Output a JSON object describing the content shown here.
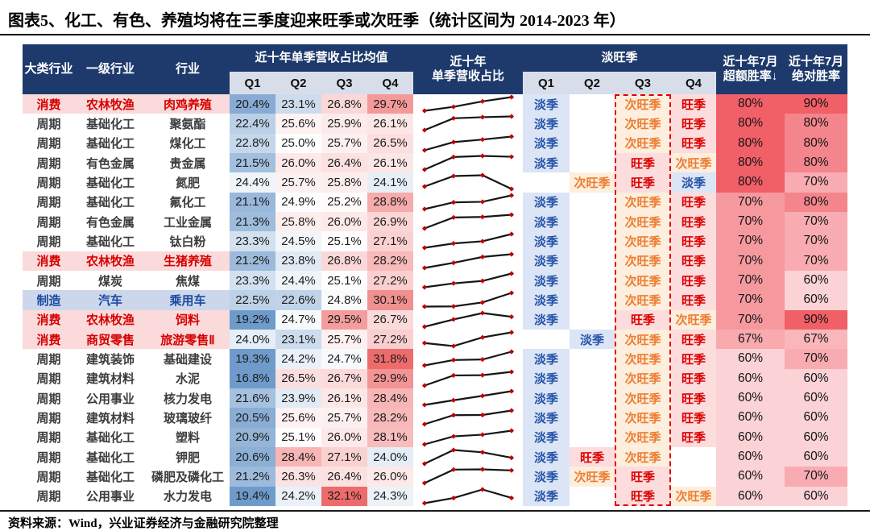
{
  "title": "图表5、化工、有色、养殖均将在三季度迎来旺季或次旺季（统计区间为 2014-2023 年）",
  "source": "资料来源：Wind，兴业证券经济与金融研究院整理",
  "header": {
    "category": "大类行业",
    "level1": "一级行业",
    "industry": "行业",
    "avg_group": "近十年单季营收占比均值",
    "trend": "近十年\n单季营收占比",
    "season_group": "淡旺季",
    "excess": "近十年7月\n超额胜率↓",
    "absolute": "近十年7月\n绝对胜率",
    "quarters": [
      "Q1",
      "Q2",
      "Q3",
      "Q4"
    ]
  },
  "season_labels": {
    "low": "淡季",
    "sub_peak": "次旺季",
    "peak": "旺季"
  },
  "colors": {
    "header_bg": "#1e3a6c",
    "subheader_bg": "#d8dee9",
    "dashed_box": "#e00000",
    "spark_line": "#161616",
    "spark_marker": "#c00000",
    "themes": {
      "消费": {
        "bg": "#fadada",
        "fg": "#d60000"
      },
      "周期": {
        "bg": "",
        "fg": "#3d3d3d"
      },
      "制造": {
        "bg": "#ccd7eb",
        "fg": "#1c4ba0"
      }
    },
    "season_styles": {
      "淡季": {
        "fg": "#2553a8",
        "bg": "#dbe5f6"
      },
      "次旺季": {
        "fg": "#ed7d31",
        "bg": "#fdeedd"
      },
      "旺季": {
        "fg": "#dd0000",
        "bg": "#fcdcdc"
      }
    },
    "value_scale": {
      "center": 25,
      "blue_span": 5.5,
      "red_span": 6.8,
      "blue": "#6f9bcb",
      "red": "#ee6b6b",
      "mid": "#ffffff"
    },
    "winrate_scale": {
      "min": 60,
      "light": "#fbd2d6",
      "strong": "#f15f67"
    }
  },
  "chart_data": {
    "type": "table",
    "columns": [
      "大类行业",
      "一级行业",
      "行业",
      "Q1均值",
      "Q2均值",
      "Q3均值",
      "Q4均值",
      "近十年单季营收占比",
      "淡旺季Q1",
      "淡旺季Q2",
      "淡旺季Q3",
      "淡旺季Q4",
      "近十年7月超额胜率",
      "近十年7月绝对胜率"
    ],
    "rows": [
      {
        "category": "消费",
        "industry": "农林牧渔",
        "sector": "肉鸡养殖",
        "q_avg": [
          20.4,
          23.1,
          26.8,
          29.7
        ],
        "seasons": [
          "淡季",
          "",
          "次旺季",
          "旺季"
        ],
        "excess": 80,
        "absolute": 90
      },
      {
        "category": "周期",
        "industry": "基础化工",
        "sector": "聚氨酯",
        "q_avg": [
          22.4,
          25.6,
          25.9,
          26.1
        ],
        "seasons": [
          "淡季",
          "",
          "次旺季",
          "旺季"
        ],
        "excess": 80,
        "absolute": 80
      },
      {
        "category": "周期",
        "industry": "基础化工",
        "sector": "煤化工",
        "q_avg": [
          22.8,
          25.0,
          25.7,
          26.5
        ],
        "seasons": [
          "淡季",
          "",
          "次旺季",
          "旺季"
        ],
        "excess": 80,
        "absolute": 80
      },
      {
        "category": "周期",
        "industry": "有色金属",
        "sector": "贵金属",
        "q_avg": [
          21.5,
          26.0,
          26.4,
          26.1
        ],
        "seasons": [
          "淡季",
          "",
          "旺季",
          "次旺季"
        ],
        "excess": 80,
        "absolute": 80
      },
      {
        "category": "周期",
        "industry": "基础化工",
        "sector": "氮肥",
        "q_avg": [
          24.4,
          25.7,
          25.8,
          24.1
        ],
        "seasons": [
          "",
          "次旺季",
          "旺季",
          "淡季"
        ],
        "excess": 80,
        "absolute": 70
      },
      {
        "category": "周期",
        "industry": "基础化工",
        "sector": "氟化工",
        "q_avg": [
          21.1,
          24.9,
          25.2,
          28.8
        ],
        "seasons": [
          "淡季",
          "",
          "次旺季",
          "旺季"
        ],
        "excess": 70,
        "absolute": 80
      },
      {
        "category": "周期",
        "industry": "有色金属",
        "sector": "工业金属",
        "q_avg": [
          21.3,
          25.8,
          26.0,
          26.9
        ],
        "seasons": [
          "淡季",
          "",
          "次旺季",
          "旺季"
        ],
        "excess": 70,
        "absolute": 70
      },
      {
        "category": "周期",
        "industry": "基础化工",
        "sector": "钛白粉",
        "q_avg": [
          23.3,
          24.5,
          25.1,
          27.1
        ],
        "seasons": [
          "淡季",
          "",
          "次旺季",
          "旺季"
        ],
        "excess": 70,
        "absolute": 70
      },
      {
        "category": "消费",
        "industry": "农林牧渔",
        "sector": "生猪养殖",
        "q_avg": [
          21.2,
          23.8,
          26.8,
          28.2
        ],
        "seasons": [
          "淡季",
          "",
          "次旺季",
          "旺季"
        ],
        "excess": 70,
        "absolute": 70
      },
      {
        "category": "周期",
        "industry": "煤炭",
        "sector": "焦煤",
        "q_avg": [
          23.3,
          24.4,
          25.1,
          27.2
        ],
        "seasons": [
          "淡季",
          "",
          "次旺季",
          "旺季"
        ],
        "excess": 70,
        "absolute": 60
      },
      {
        "category": "制造",
        "industry": "汽车",
        "sector": "乘用车",
        "q_avg": [
          22.5,
          22.6,
          24.8,
          30.1
        ],
        "seasons": [
          "淡季",
          "",
          "次旺季",
          "旺季"
        ],
        "excess": 70,
        "absolute": 60
      },
      {
        "category": "消费",
        "industry": "农林牧渔",
        "sector": "饲料",
        "q_avg": [
          19.2,
          24.7,
          29.5,
          26.7
        ],
        "seasons": [
          "淡季",
          "",
          "旺季",
          "次旺季"
        ],
        "excess": 70,
        "absolute": 90
      },
      {
        "category": "消费",
        "industry": "商贸零售",
        "sector": "旅游零售Ⅱ",
        "q_avg": [
          24.0,
          23.1,
          25.7,
          27.2
        ],
        "seasons": [
          "",
          "淡季",
          "次旺季",
          "旺季"
        ],
        "excess": 67,
        "absolute": 67
      },
      {
        "category": "周期",
        "industry": "建筑装饰",
        "sector": "基础建设",
        "q_avg": [
          19.3,
          24.2,
          24.7,
          31.8
        ],
        "seasons": [
          "淡季",
          "",
          "次旺季",
          "旺季"
        ],
        "excess": 60,
        "absolute": 70
      },
      {
        "category": "周期",
        "industry": "建筑材料",
        "sector": "水泥",
        "q_avg": [
          16.8,
          26.5,
          26.7,
          29.9
        ],
        "seasons": [
          "淡季",
          "",
          "次旺季",
          "旺季"
        ],
        "excess": 60,
        "absolute": 60
      },
      {
        "category": "周期",
        "industry": "公用事业",
        "sector": "核力发电",
        "q_avg": [
          21.6,
          23.9,
          26.1,
          28.4
        ],
        "seasons": [
          "淡季",
          "",
          "次旺季",
          "旺季"
        ],
        "excess": 60,
        "absolute": 60
      },
      {
        "category": "周期",
        "industry": "建筑材料",
        "sector": "玻璃玻纤",
        "q_avg": [
          20.5,
          25.6,
          25.7,
          28.2
        ],
        "seasons": [
          "淡季",
          "",
          "次旺季",
          "旺季"
        ],
        "excess": 60,
        "absolute": 60
      },
      {
        "category": "周期",
        "industry": "基础化工",
        "sector": "塑料",
        "q_avg": [
          20.9,
          25.1,
          26.0,
          28.1
        ],
        "seasons": [
          "淡季",
          "",
          "次旺季",
          "旺季"
        ],
        "excess": 60,
        "absolute": 60
      },
      {
        "category": "周期",
        "industry": "基础化工",
        "sector": "钾肥",
        "q_avg": [
          20.6,
          28.4,
          27.1,
          24.0
        ],
        "seasons": [
          "淡季",
          "旺季",
          "次旺季",
          ""
        ],
        "excess": 60,
        "absolute": 60
      },
      {
        "category": "周期",
        "industry": "基础化工",
        "sector": "磷肥及磷化工",
        "q_avg": [
          21.2,
          26.3,
          26.4,
          26.0
        ],
        "seasons": [
          "淡季",
          "次旺季",
          "旺季",
          ""
        ],
        "excess": 60,
        "absolute": 70
      },
      {
        "category": "周期",
        "industry": "公用事业",
        "sector": "水力发电",
        "q_avg": [
          19.4,
          24.2,
          32.1,
          24.3
        ],
        "seasons": [
          "淡季",
          "",
          "旺季",
          "次旺季"
        ],
        "excess": 60,
        "absolute": 60
      }
    ]
  }
}
